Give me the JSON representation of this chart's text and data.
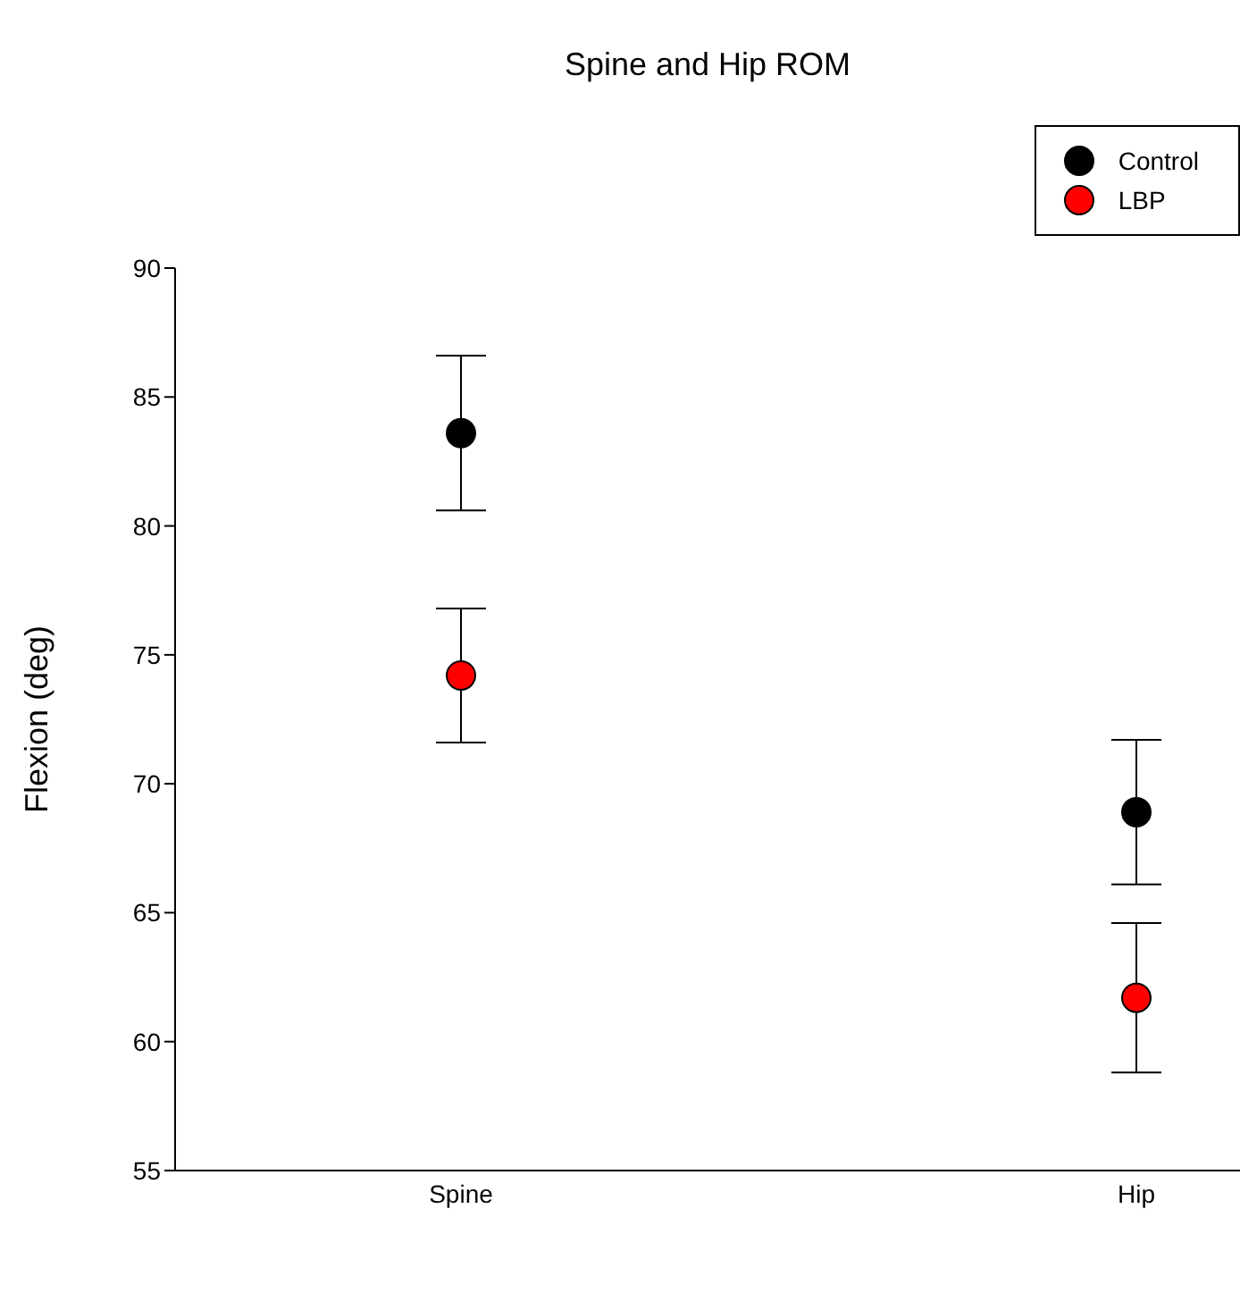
{
  "chart_data": {
    "type": "scatter",
    "title": "Spine and Hip ROM",
    "ylabel": "Flexion (deg)",
    "categories": [
      "Spine",
      "Hip"
    ],
    "series": [
      {
        "name": "Control",
        "color": "#000000",
        "values": [
          83.6,
          68.9
        ],
        "errors": [
          3.0,
          2.8
        ]
      },
      {
        "name": "LBP",
        "color": "#ff0000",
        "values": [
          74.2,
          61.7
        ],
        "errors": [
          2.6,
          2.9
        ]
      }
    ],
    "ylim": [
      55,
      90
    ],
    "yticks": [
      55,
      60,
      65,
      70,
      75,
      80,
      85,
      90
    ],
    "grid": false,
    "legend": "top right",
    "marker": "circle"
  }
}
